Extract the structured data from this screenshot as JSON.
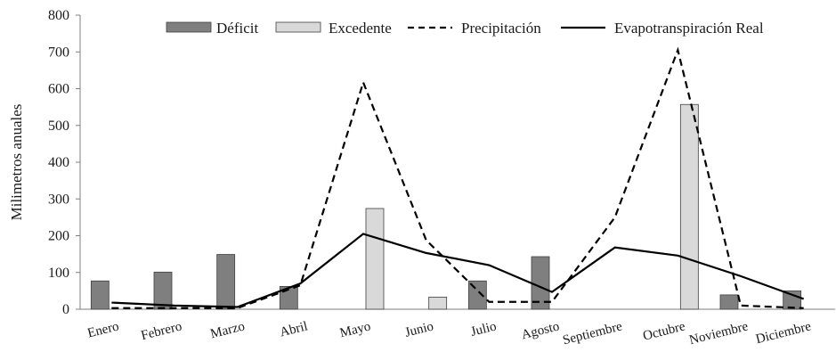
{
  "chart_data": {
    "type": "bar",
    "ylabel": "Milimetros anuales",
    "ylim": [
      0,
      800
    ],
    "yticks": [
      0,
      100,
      200,
      300,
      400,
      500,
      600,
      700,
      800
    ],
    "categories": [
      "Enero",
      "Febrero",
      "Marzo",
      "Abril",
      "Mayo",
      "Junio",
      "Julio",
      "Agosto",
      "Septiembre",
      "Octubre",
      "Noviembre",
      "Diciembre"
    ],
    "series": [
      {
        "name": "Déficit",
        "type": "bar",
        "color": "#7f7f7f",
        "values": [
          77,
          101,
          149,
          62,
          0,
          0,
          77,
          143,
          0,
          0,
          39,
          50
        ]
      },
      {
        "name": "Excedente",
        "type": "bar",
        "color": "#d9d9d9",
        "values": [
          0,
          0,
          0,
          0,
          274,
          33,
          0,
          0,
          0,
          557,
          0,
          0
        ]
      },
      {
        "name": "Precipitación",
        "type": "line",
        "style": "dashed",
        "color": "#000000",
        "values": [
          3,
          3,
          3,
          65,
          617,
          188,
          20,
          20,
          250,
          705,
          10,
          3
        ]
      },
      {
        "name": "Evapotranspiración Real",
        "type": "line",
        "style": "solid",
        "color": "#000000",
        "values": [
          18,
          10,
          6,
          70,
          205,
          153,
          120,
          47,
          168,
          146,
          90,
          28
        ]
      }
    ],
    "legend_position": "top",
    "grid": false
  }
}
